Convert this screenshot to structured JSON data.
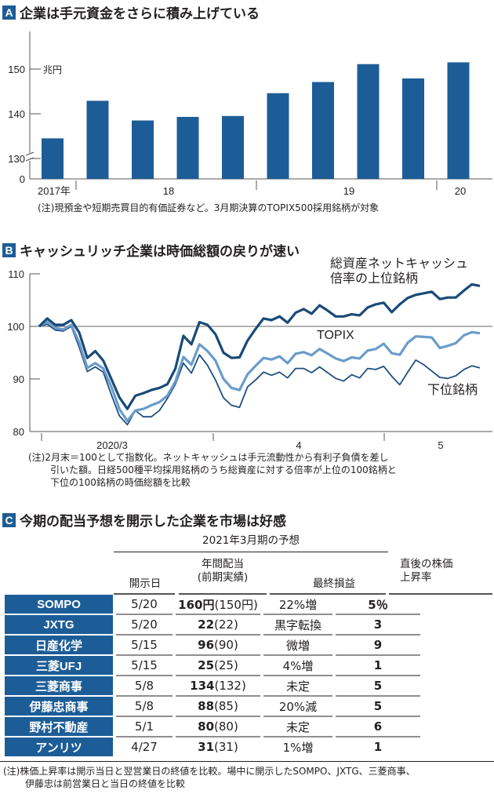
{
  "section_a": {
    "badge": "A",
    "title": "企業は手元資金をさらに積み上げている",
    "note": "(注)現預金や短期売買目的有価証券など。3月期決算のTOPIX500採用銘柄が対象"
  },
  "section_b": {
    "badge": "B",
    "title": "キャッシュリッチ企業は時価総額の戻りが速い",
    "note_lines": [
      "(注)2月末＝100として指数化。ネットキャッシュは手元流動性から有利子負債を差し",
      "引いた額。日経500種平均採用銘柄のうち総資産に対する倍率が上位の100銘柄と",
      "下位の100銘柄の時価総額を比較"
    ]
  },
  "section_c": {
    "badge": "C",
    "title": "今期の配当予想を開示した企業を市場は好感",
    "group_header": "2021年3月期の予想",
    "columns": [
      "開示日",
      "年間配当",
      "(前期実績)",
      "最終損益",
      "直後の株価",
      "上昇率"
    ],
    "rows": [
      {
        "name": "SOMPO",
        "date": "5/20",
        "div": "160円",
        "prev": "(150円)",
        "profit": "22%増",
        "rise": "5％"
      },
      {
        "name": "JXTG",
        "date": "5/20",
        "div": "22",
        "prev": "(22)",
        "profit": "黒字転換",
        "rise": "3"
      },
      {
        "name": "日産化学",
        "date": "5/15",
        "div": "96",
        "prev": "(90)",
        "profit": "微増",
        "rise": "9"
      },
      {
        "name": "三菱UFJ",
        "date": "5/15",
        "div": "25",
        "prev": "(25)",
        "profit": "4%増",
        "rise": "1"
      },
      {
        "name": "三菱商事",
        "date": "5/8",
        "div": "134",
        "prev": "(132)",
        "profit": "未定",
        "rise": "5"
      },
      {
        "name": "伊藤忠商事",
        "date": "5/8",
        "div": "88",
        "prev": "(85)",
        "profit": "20%減",
        "rise": "5"
      },
      {
        "name": "野村不動産",
        "date": "5/1",
        "div": "80",
        "prev": "(80)",
        "profit": "未定",
        "rise": "6"
      },
      {
        "name": "アンリツ",
        "date": "4/27",
        "div": "31",
        "prev": "(31)",
        "profit": "1%増",
        "rise": "1"
      }
    ],
    "note_lines": [
      "(注)株価上昇率は開示当日と翌営業日の終値を比較。場中に開示したSOMPO、JXTG、三菱商事、",
      "伊藤忠は前営業日と当日の終値を比較"
    ]
  },
  "colors": {
    "bar": "#1d5d97",
    "upper": "#1a4a78",
    "topix": "#6a9ccb",
    "lower": "#1f4f80",
    "badge": "#1d5d97"
  },
  "chart_data": [
    {
      "type": "bar",
      "title": "企業は手元資金をさらに積み上げている",
      "unit_label": "兆円",
      "yticks": [
        "0",
        "130",
        "140",
        "150"
      ],
      "ylim": [
        125,
        155
      ],
      "axis_break": true,
      "x_labels": [
        "2017年",
        "18",
        "19",
        "20"
      ],
      "categories": [
        "2017-1",
        "2017-2",
        "2018-1",
        "2018-2",
        "2018-3",
        "2018-4",
        "2019-1",
        "2019-2",
        "2019-3",
        "2020-1"
      ],
      "values": [
        134.5,
        142.9,
        138.5,
        139.3,
        139.5,
        144.6,
        147.1,
        151.1,
        147.9,
        151.5
      ]
    },
    {
      "type": "line",
      "title": "キャッシュリッチ企業は時価総額の戻りが速い",
      "yticks": [
        "80",
        "90",
        "100",
        "110"
      ],
      "ylim": [
        80,
        110
      ],
      "x_labels": [
        "2020/3",
        "4",
        "5"
      ],
      "reference_line": 100,
      "series": [
        {
          "name": "総資産ネットキャッシュ倍率の上位銘柄",
          "label_lines": [
            "総資産ネットキャッシュ",
            "倍率の上位銘柄"
          ],
          "values": [
            100,
            101.5,
            100.3,
            100.3,
            101.2,
            98.8,
            94.0,
            95.3,
            93.5,
            90.0,
            86.5,
            84.3,
            86.8,
            87.3,
            87.9,
            88.3,
            89.0,
            92.0,
            98.2,
            96.6,
            100.8,
            100.3,
            98.5,
            95.0,
            94.0,
            94.1,
            97.3,
            99.5,
            101.5,
            101.2,
            101.9,
            100.7,
            102.6,
            103.3,
            102.4,
            104.0,
            103.0,
            101.9,
            101.9,
            102.3,
            102.1,
            103.6,
            104.2,
            104.5,
            102.7,
            104.2,
            105.4,
            106.0,
            106.3,
            106.6,
            105.2,
            105.5,
            105.5,
            106.8,
            108.0,
            107.7
          ]
        },
        {
          "name": "TOPIX",
          "label_lines": [
            "TOPIX"
          ],
          "values": [
            100,
            100.9,
            99.7,
            99.4,
            100.3,
            96.9,
            92.1,
            93.0,
            92.0,
            88.5,
            84.3,
            82.0,
            84.0,
            84.3,
            85.0,
            85.6,
            86.8,
            89.5,
            94.2,
            92.7,
            96.6,
            95.3,
            93.5,
            90.0,
            88.3,
            87.9,
            90.9,
            92.5,
            94.0,
            93.7,
            94.3,
            93.0,
            94.8,
            95.1,
            94.5,
            95.7,
            94.8,
            93.9,
            93.4,
            94.1,
            93.9,
            95.4,
            95.7,
            96.7,
            94.9,
            94.6,
            96.9,
            98.1,
            98.0,
            97.9,
            95.9,
            96.3,
            96.8,
            98.3,
            98.9,
            98.7
          ]
        },
        {
          "name": "下位銘柄",
          "label_lines": [
            "下位銘柄"
          ],
          "values": [
            100,
            100.4,
            99.3,
            99.1,
            100.0,
            96.0,
            91.4,
            92.3,
            91.3,
            87.0,
            83.0,
            81.3,
            84.0,
            82.8,
            82.8,
            84.0,
            86.3,
            89.0,
            93.0,
            91.1,
            94.6,
            92.6,
            89.8,
            86.4,
            85.0,
            84.6,
            88.5,
            89.8,
            91.3,
            90.7,
            91.3,
            90.2,
            92.0,
            92.0,
            91.2,
            92.3,
            91.2,
            90.1,
            89.6,
            90.8,
            90.2,
            92.0,
            91.8,
            92.4,
            90.5,
            88.9,
            91.3,
            93.6,
            92.7,
            91.5,
            90.3,
            90.1,
            90.6,
            91.8,
            92.5,
            92.1
          ]
        }
      ]
    }
  ]
}
